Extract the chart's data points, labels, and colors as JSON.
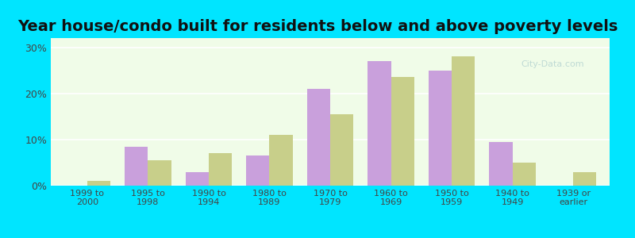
{
  "categories": [
    "1999 to\n2000",
    "1995 to\n1998",
    "1990 to\n1994",
    "1980 to\n1989",
    "1970 to\n1979",
    "1960 to\n1969",
    "1950 to\n1959",
    "1940 to\n1949",
    "1939 or\nearlier"
  ],
  "below_poverty": [
    0.0,
    8.5,
    3.0,
    6.5,
    21.0,
    27.0,
    25.0,
    9.5,
    0.0
  ],
  "above_poverty": [
    1.0,
    5.5,
    7.0,
    11.0,
    15.5,
    23.5,
    28.0,
    5.0,
    3.0
  ],
  "below_color": "#c9a0dc",
  "above_color": "#c8cf8a",
  "title": "Year house/condo built for residents below and above poverty levels",
  "title_fontsize": 14,
  "ylabel_ticks": [
    "0%",
    "10%",
    "20%",
    "30%"
  ],
  "yticks": [
    0,
    10,
    20,
    30
  ],
  "ylim": [
    0,
    32
  ],
  "bg_color": "#f0fce8",
  "outer_bg": "#00e5ff",
  "grid_color": "#ffffff",
  "bar_width": 0.38
}
